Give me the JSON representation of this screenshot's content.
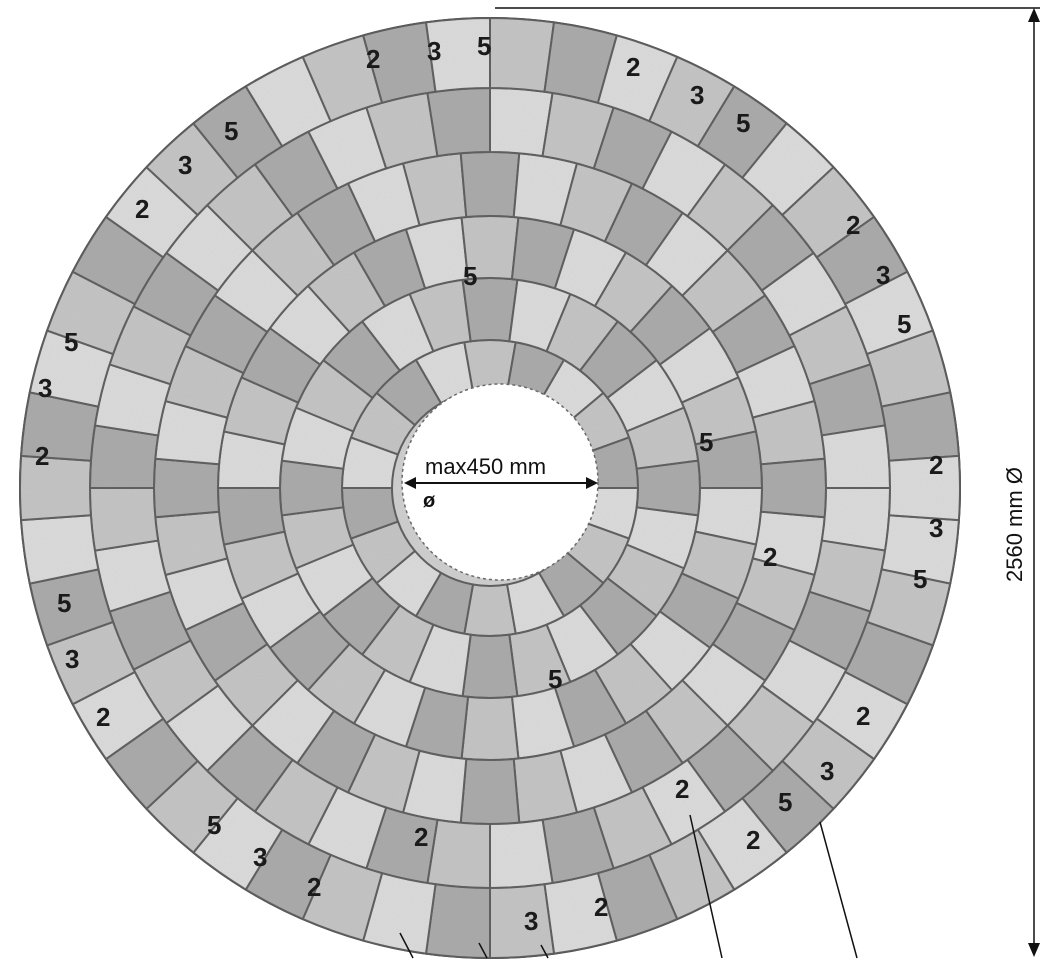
{
  "figure": {
    "outer_diameter_label": "2560 mm Ø",
    "inner_hole_label": "max450 mm",
    "inner_hole_symbol": "ø"
  },
  "ring_colors": {
    "stone_light": "#dcdcdc",
    "stone_mid": "#c4c4c4",
    "stone_dark": "#a9a9a9",
    "joint": "#5a5a5a",
    "background": "#ffffff"
  },
  "rings": [
    {
      "name": "ring-1",
      "stones": 18
    },
    {
      "name": "ring-2",
      "stones": 24
    },
    {
      "name": "ring-3",
      "stones": 30
    },
    {
      "name": "ring-4",
      "stones": 36
    },
    {
      "name": "ring-5",
      "stones": 40
    },
    {
      "name": "ring-6",
      "stones": 46
    }
  ],
  "stone_labels": {
    "top": [
      "2",
      "3",
      "5",
      "2",
      "3",
      "5"
    ],
    "upper_left": [
      "5",
      "3",
      "2"
    ],
    "left": [
      "5",
      "3",
      "2",
      "5",
      "3",
      "2"
    ],
    "right": [
      "2",
      "3",
      "5",
      "2",
      "3",
      "5"
    ],
    "inner": [
      "5",
      "5",
      "2",
      "5"
    ],
    "lower_left": [
      "5",
      "3",
      "2"
    ],
    "bottom": [
      "2",
      "3",
      "2",
      "2",
      "2",
      "5",
      "3",
      "2"
    ]
  }
}
